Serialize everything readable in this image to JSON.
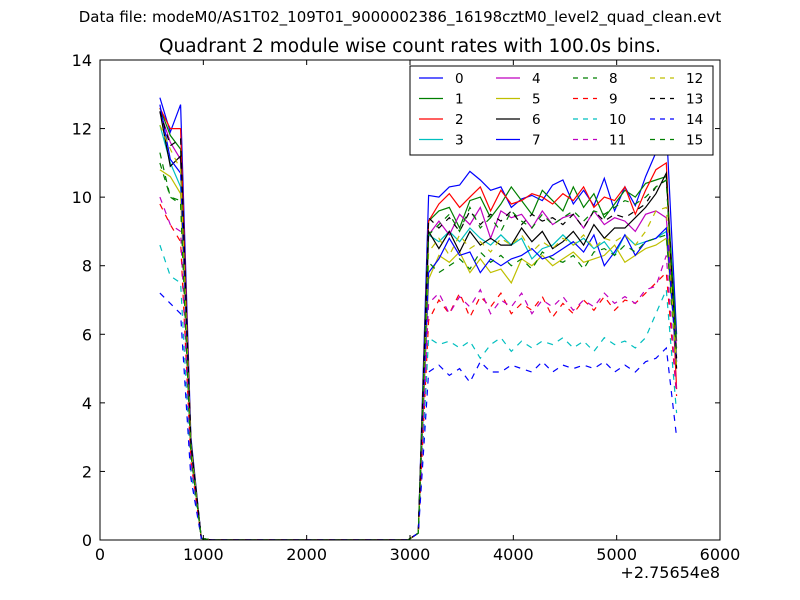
{
  "figure": {
    "suptitle": "Data file: modeM0/AS1T02_109T01_9000002386_16198cztM0_level2_quad_clean.evt"
  },
  "chart_data": {
    "type": "line",
    "title": "Quadrant 2 module wise count rates with 100.0s bins.",
    "xlabel": "",
    "ylabel": "",
    "xlim": [
      0,
      6000
    ],
    "ylim": [
      0,
      14
    ],
    "x_offset_text": "+2.75654e8",
    "x_ticks": [
      0,
      1000,
      2000,
      3000,
      4000,
      5000,
      6000
    ],
    "y_ticks": [
      0,
      2,
      4,
      6,
      8,
      10,
      12,
      14
    ],
    "grid": false,
    "legend": {
      "placement": "top-right",
      "columns": 4
    },
    "x": [
      580,
      680,
      780,
      880,
      980,
      1080,
      1180,
      1280,
      1380,
      1480,
      1580,
      1680,
      1780,
      1880,
      1980,
      2080,
      2180,
      2280,
      2380,
      2480,
      2580,
      2680,
      2780,
      2880,
      2980,
      3080,
      3180,
      3280,
      3380,
      3480,
      3580,
      3680,
      3780,
      3880,
      3980,
      4080,
      4180,
      4280,
      4380,
      4480,
      4580,
      4680,
      4780,
      4880,
      4980,
      5080,
      5180,
      5280,
      5380,
      5480,
      5580
    ],
    "series": [
      {
        "name": "0",
        "color": "#0000ff",
        "dash": "solid",
        "values": [
          12.9,
          11.9,
          12.7,
          3.0,
          0.05,
          0,
          0,
          0,
          0,
          0,
          0,
          0,
          0,
          0,
          0,
          0,
          0,
          0,
          0,
          0,
          0,
          0,
          0,
          0,
          0,
          0.2,
          10.05,
          10.0,
          10.3,
          10.35,
          10.75,
          10.5,
          10.2,
          10.3,
          9.7,
          9.95,
          10.05,
          9.9,
          10.35,
          10.5,
          9.8,
          10.2,
          9.75,
          10.55,
          9.6,
          10.3,
          9.75,
          10.6,
          11.3,
          12.1,
          6.0
        ]
      },
      {
        "name": "1",
        "color": "#007f00",
        "dash": "solid",
        "values": [
          12.6,
          11.8,
          11.4,
          2.9,
          0.05,
          0,
          0,
          0,
          0,
          0,
          0,
          0,
          0,
          0,
          0,
          0,
          0,
          0,
          0,
          0,
          0,
          0,
          0,
          0,
          0,
          0.2,
          9.3,
          9.6,
          9.7,
          9.1,
          9.9,
          10.0,
          9.4,
          9.8,
          10.3,
          9.9,
          9.5,
          10.2,
          9.9,
          9.6,
          10.3,
          9.7,
          10.1,
          9.4,
          9.8,
          10.2,
          10.0,
          10.4,
          10.5,
          10.6,
          5.8
        ]
      },
      {
        "name": "2",
        "color": "#ff0000",
        "dash": "solid",
        "values": [
          12.6,
          12.0,
          12.0,
          2.8,
          0.05,
          0,
          0,
          0,
          0,
          0,
          0,
          0,
          0,
          0,
          0,
          0,
          0,
          0,
          0,
          0,
          0,
          0,
          0,
          0,
          0,
          0.2,
          9.3,
          9.8,
          10.1,
          9.7,
          10.0,
          10.3,
          9.6,
          10.2,
          9.8,
          9.9,
          10.1,
          10.0,
          9.8,
          10.1,
          9.9,
          10.3,
          9.7,
          10.0,
          9.9,
          10.3,
          9.5,
          10.2,
          10.8,
          11.0,
          4.4
        ]
      },
      {
        "name": "3",
        "color": "#00bfbf",
        "dash": "solid",
        "values": [
          12.1,
          11.0,
          10.3,
          2.7,
          0.05,
          0,
          0,
          0,
          0,
          0,
          0,
          0,
          0,
          0,
          0,
          0,
          0,
          0,
          0,
          0,
          0,
          0,
          0,
          0,
          0,
          0.2,
          8.9,
          8.7,
          9.0,
          8.7,
          9.1,
          8.8,
          8.6,
          8.9,
          8.6,
          8.8,
          8.2,
          8.5,
          8.6,
          8.9,
          8.6,
          8.8,
          8.5,
          8.7,
          8.3,
          8.9,
          8.6,
          8.7,
          8.8,
          9.0,
          5.2
        ]
      },
      {
        "name": "4",
        "color": "#bf00bf",
        "dash": "solid",
        "values": [
          12.5,
          11.6,
          11.1,
          2.8,
          0.05,
          0,
          0,
          0,
          0,
          0,
          0,
          0,
          0,
          0,
          0,
          0,
          0,
          0,
          0,
          0,
          0,
          0,
          0,
          0,
          0,
          0.2,
          8.9,
          9.3,
          8.9,
          9.5,
          9.2,
          9.7,
          8.8,
          9.6,
          9.4,
          9.5,
          9.1,
          9.6,
          9.2,
          9.4,
          9.5,
          9.1,
          9.6,
          9.2,
          9.4,
          9.3,
          9.0,
          9.5,
          9.6,
          9.4,
          5.6
        ]
      },
      {
        "name": "5",
        "color": "#bfbf00",
        "dash": "solid",
        "values": [
          10.8,
          10.6,
          10.1,
          2.6,
          0.05,
          0,
          0,
          0,
          0,
          0,
          0,
          0,
          0,
          0,
          0,
          0,
          0,
          0,
          0,
          0,
          0,
          0,
          0,
          0,
          0,
          0.2,
          7.6,
          8.3,
          8.1,
          8.4,
          7.8,
          8.2,
          7.8,
          7.9,
          7.5,
          8.2,
          8.0,
          8.3,
          8.0,
          8.2,
          8.4,
          8.1,
          8.2,
          8.3,
          8.6,
          8.1,
          8.3,
          8.5,
          8.6,
          8.8,
          5.4
        ]
      },
      {
        "name": "6",
        "color": "#000000",
        "dash": "solid",
        "values": [
          12.5,
          10.9,
          11.2,
          2.8,
          0.05,
          0,
          0,
          0,
          0,
          0,
          0,
          0,
          0,
          0,
          0,
          0,
          0,
          0,
          0,
          0,
          0,
          0,
          0,
          0,
          0,
          0.2,
          9.0,
          8.5,
          9.0,
          8.4,
          9.0,
          8.6,
          8.8,
          8.6,
          8.6,
          9.1,
          8.7,
          9.0,
          8.5,
          8.7,
          9.0,
          8.6,
          9.2,
          8.8,
          9.1,
          9.1,
          9.4,
          9.7,
          10.1,
          10.7,
          5.0
        ]
      },
      {
        "name": "7",
        "color": "#0000ff",
        "dash": "solid",
        "values": [
          12.7,
          11.1,
          10.7,
          2.7,
          0.05,
          0,
          0,
          0,
          0,
          0,
          0,
          0,
          0,
          0,
          0,
          0,
          0,
          0,
          0,
          0,
          0,
          0,
          0,
          0,
          0,
          0.2,
          7.8,
          8.2,
          8.8,
          8.3,
          8.4,
          7.8,
          8.2,
          8.0,
          8.2,
          8.3,
          8.5,
          8.2,
          8.3,
          8.5,
          8.7,
          8.4,
          8.9,
          8.0,
          8.4,
          8.9,
          8.3,
          8.7,
          8.8,
          9.1,
          5.2
        ]
      },
      {
        "name": "8",
        "color": "#007f00",
        "dash": "dashed",
        "values": [
          11.3,
          10.0,
          9.9,
          2.5,
          0.05,
          0,
          0,
          0,
          0,
          0,
          0,
          0,
          0,
          0,
          0,
          0,
          0,
          0,
          0,
          0,
          0,
          0,
          0,
          0,
          0,
          0.2,
          8.1,
          7.8,
          8.0,
          8.2,
          7.9,
          8.4,
          8.1,
          8.3,
          8.0,
          8.2,
          7.9,
          8.4,
          8.2,
          8.1,
          8.3,
          7.9,
          8.4,
          8.5,
          8.3,
          8.6,
          8.4,
          8.7,
          8.8,
          8.9,
          5.0
        ]
      },
      {
        "name": "9",
        "color": "#ff0000",
        "dash": "dashed",
        "values": [
          9.8,
          9.2,
          8.7,
          2.3,
          0.05,
          0,
          0,
          0,
          0,
          0,
          0,
          0,
          0,
          0,
          0,
          0,
          0,
          0,
          0,
          0,
          0,
          0,
          0,
          0,
          0,
          0.2,
          6.4,
          7.0,
          6.6,
          7.2,
          6.5,
          7.1,
          6.8,
          7.2,
          6.6,
          6.9,
          6.7,
          7.1,
          6.5,
          6.9,
          6.6,
          7.0,
          6.7,
          7.1,
          6.7,
          7.0,
          6.9,
          7.2,
          7.5,
          7.8,
          4.2
        ]
      },
      {
        "name": "10",
        "color": "#00bfbf",
        "dash": "dashed",
        "values": [
          8.6,
          7.7,
          7.5,
          2.0,
          0.05,
          0,
          0,
          0,
          0,
          0,
          0,
          0,
          0,
          0,
          0,
          0,
          0,
          0,
          0,
          0,
          0,
          0,
          0,
          0,
          0,
          0.2,
          5.9,
          5.7,
          5.8,
          5.6,
          5.8,
          5.3,
          5.7,
          5.9,
          5.5,
          5.8,
          5.6,
          5.8,
          5.7,
          5.9,
          5.6,
          5.8,
          5.5,
          5.9,
          5.7,
          5.8,
          5.6,
          5.9,
          6.6,
          7.3,
          3.7
        ]
      },
      {
        "name": "11",
        "color": "#bf00bf",
        "dash": "dashed",
        "values": [
          10.0,
          9.2,
          9.0,
          2.3,
          0.05,
          0,
          0,
          0,
          0,
          0,
          0,
          0,
          0,
          0,
          0,
          0,
          0,
          0,
          0,
          0,
          0,
          0,
          0,
          0,
          0,
          0.2,
          6.9,
          7.2,
          6.6,
          7.1,
          6.8,
          7.3,
          6.6,
          7.0,
          6.8,
          7.2,
          6.6,
          7.0,
          6.8,
          7.1,
          6.7,
          7.0,
          6.8,
          7.2,
          6.9,
          7.1,
          6.9,
          7.3,
          7.4,
          8.3,
          4.3
        ]
      },
      {
        "name": "12",
        "color": "#bfbf00",
        "dash": "dashed",
        "values": [
          12.1,
          11.4,
          10.8,
          2.7,
          0.05,
          0,
          0,
          0,
          0,
          0,
          0,
          0,
          0,
          0,
          0,
          0,
          0,
          0,
          0,
          0,
          0,
          0,
          0,
          0,
          0,
          0.2,
          8.4,
          8.8,
          8.3,
          8.9,
          8.5,
          8.7,
          8.4,
          8.8,
          8.6,
          8.9,
          8.4,
          8.7,
          8.5,
          8.8,
          8.6,
          8.9,
          8.5,
          8.8,
          8.7,
          8.9,
          8.6,
          9.0,
          9.6,
          9.7,
          5.0
        ]
      },
      {
        "name": "13",
        "color": "#000000",
        "dash": "dashed",
        "values": [
          12.5,
          11.5,
          11.7,
          2.8,
          0.05,
          0,
          0,
          0,
          0,
          0,
          0,
          0,
          0,
          0,
          0,
          0,
          0,
          0,
          0,
          0,
          0,
          0,
          0,
          0,
          0,
          0.2,
          9.4,
          9.1,
          9.4,
          9.0,
          9.6,
          9.2,
          9.5,
          9.3,
          9.6,
          9.2,
          9.5,
          9.3,
          9.4,
          9.2,
          9.5,
          9.1,
          9.6,
          9.3,
          9.5,
          9.4,
          9.6,
          9.8,
          10.3,
          10.5,
          5.3
        ]
      },
      {
        "name": "14",
        "color": "#0000ff",
        "dash": "dashed",
        "values": [
          7.2,
          6.9,
          6.6,
          1.8,
          0.05,
          0,
          0,
          0,
          0,
          0,
          0,
          0,
          0,
          0,
          0,
          0,
          0,
          0,
          0,
          0,
          0,
          0,
          0,
          0,
          0,
          0.2,
          4.9,
          5.1,
          4.8,
          5.0,
          4.6,
          5.2,
          4.9,
          4.9,
          5.1,
          5.0,
          4.9,
          5.2,
          4.9,
          5.1,
          5.0,
          5.1,
          5.0,
          5.2,
          4.9,
          5.1,
          4.9,
          5.2,
          5.3,
          5.6,
          3.0
        ]
      },
      {
        "name": "15",
        "color": "#007f00",
        "dash": "dashed",
        "values": [
          11.0,
          10.0,
          9.8,
          2.5,
          0.05,
          0,
          0,
          0,
          0,
          0,
          0,
          0,
          0,
          0,
          0,
          0,
          0,
          0,
          0,
          0,
          0,
          0,
          0,
          0,
          0,
          0.2,
          8.9,
          9.2,
          9.5,
          9.0,
          9.7,
          9.1,
          9.4,
          9.0,
          9.6,
          9.3,
          9.1,
          9.5,
          9.2,
          9.4,
          9.6,
          9.3,
          9.6,
          9.5,
          9.7,
          9.9,
          9.8,
          10.0,
          10.3,
          10.5,
          5.4
        ]
      }
    ]
  }
}
